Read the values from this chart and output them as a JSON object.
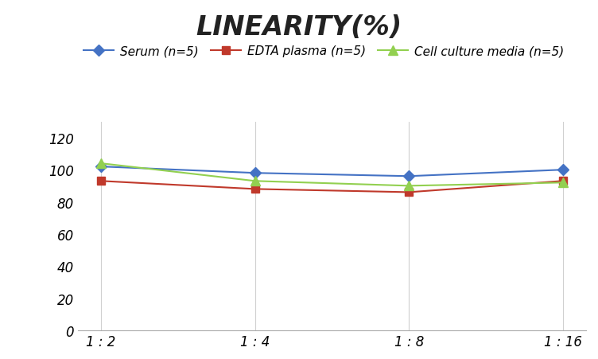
{
  "title": "LINEARITY(%)",
  "x_labels": [
    "1 : 2",
    "1 : 4",
    "1 : 8",
    "1 : 16"
  ],
  "x_positions": [
    0,
    1,
    2,
    3
  ],
  "series": [
    {
      "label": "Serum (n=5)",
      "color": "#4472C4",
      "marker": "D",
      "markersize": 7,
      "values": [
        102,
        98,
        96,
        100
      ]
    },
    {
      "label": "EDTA plasma (n=5)",
      "color": "#C0392B",
      "marker": "s",
      "markersize": 7,
      "values": [
        93,
        88,
        86,
        93
      ]
    },
    {
      "label": "Cell culture media (n=5)",
      "color": "#92D050",
      "marker": "^",
      "markersize": 9,
      "values": [
        104,
        93,
        90,
        92
      ]
    }
  ],
  "ylim": [
    0,
    130
  ],
  "yticks": [
    0,
    20,
    40,
    60,
    80,
    100,
    120
  ],
  "background_color": "#FFFFFF",
  "grid_color": "#D0D0D0",
  "title_fontsize": 24,
  "legend_fontsize": 11,
  "tick_fontsize": 12
}
